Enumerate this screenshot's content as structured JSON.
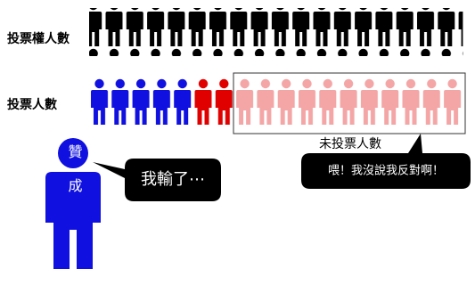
{
  "labels": {
    "eligible_voters": "投票權人數",
    "voters": "投票人數",
    "non_voters": "未投票人數"
  },
  "figure_label": "贊成",
  "speech": {
    "loser": "我輸了⋯",
    "non_voter": "喂！我沒說我反對啊！"
  }
}
